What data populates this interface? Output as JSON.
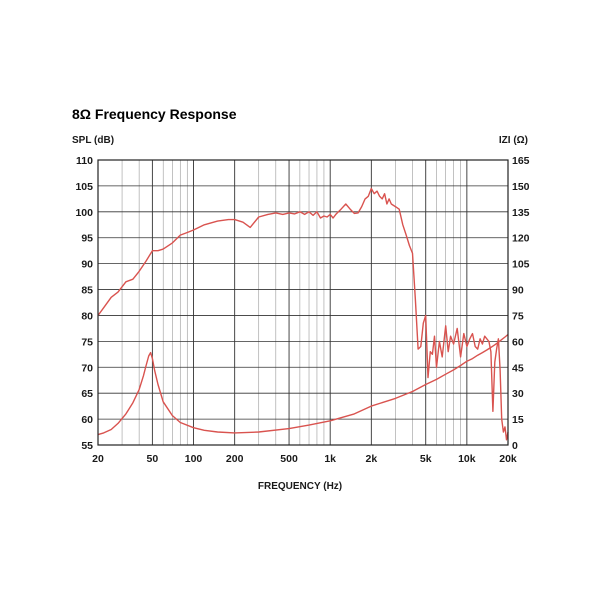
{
  "chart_data": {
    "type": "line",
    "title": "8Ω Frequency Response",
    "xlabel": "FREQUENCY (Hz)",
    "ylabel": "SPL (dB)",
    "y2label": "IZI (Ω)",
    "xscale": "log",
    "xlim": [
      20,
      20000
    ],
    "ylim": [
      55,
      110
    ],
    "y2lim": [
      0,
      165
    ],
    "grid": true,
    "colors": {
      "line": "#d9534f",
      "grid": "#999999",
      "major_grid": "#333333"
    },
    "xticks": [
      {
        "value": 20,
        "label": "20"
      },
      {
        "value": 50,
        "label": "50"
      },
      {
        "value": 100,
        "label": "100"
      },
      {
        "value": 200,
        "label": "200"
      },
      {
        "value": 500,
        "label": "500"
      },
      {
        "value": 1000,
        "label": "1k"
      },
      {
        "value": 2000,
        "label": "2k"
      },
      {
        "value": 5000,
        "label": "5k"
      },
      {
        "value": 10000,
        "label": "10k"
      },
      {
        "value": 20000,
        "label": "20k"
      }
    ],
    "yticks": [
      "55",
      "60",
      "65",
      "70",
      "75",
      "80",
      "85",
      "90",
      "95",
      "100",
      "105",
      "110"
    ],
    "y2ticks": [
      "0",
      "15",
      "30",
      "45",
      "60",
      "75",
      "90",
      "105",
      "120",
      "135",
      "150",
      "165"
    ],
    "series": [
      {
        "x": [
          20,
          22,
          25,
          28,
          32,
          36,
          40,
          45,
          50,
          55,
          60,
          70,
          80,
          90,
          100,
          120,
          150,
          180,
          200,
          230,
          260,
          300,
          350,
          400,
          450,
          500,
          550,
          600,
          650,
          700,
          750,
          800,
          850,
          900,
          950,
          1000,
          1050,
          1100,
          1200,
          1300,
          1400,
          1500,
          1600,
          1700,
          1800,
          1900,
          2000,
          2100,
          2200,
          2300,
          2400,
          2500,
          2600,
          2700,
          2800,
          3000,
          3200,
          3400,
          3600,
          3800,
          4000,
          4200,
          4400,
          4600,
          4800,
          5000,
          5200,
          5400,
          5600,
          5800,
          6000,
          6300,
          6600,
          7000,
          7300,
          7600,
          8000,
          8500,
          9000,
          9500,
          10000,
          10500,
          11000,
          11500,
          12000,
          12500,
          13000,
          13500,
          14000,
          14500,
          15000,
          15500,
          16000,
          16500,
          17000,
          17500,
          18000,
          18500,
          19000,
          19500,
          20000
        ],
        "y": [
          80,
          81.5,
          83.5,
          84.5,
          86.5,
          87,
          88.5,
          90.5,
          92.5,
          92.5,
          92.8,
          94,
          95.5,
          96,
          96.5,
          97.5,
          98.2,
          98.5,
          98.5,
          98,
          97,
          99,
          99.5,
          99.8,
          99.5,
          99.8,
          99.6,
          100,
          99.5,
          100,
          99.3,
          100,
          98.8,
          99.2,
          99,
          99.5,
          98.8,
          99.5,
          100.5,
          101.5,
          100.5,
          99.7,
          99.8,
          101,
          102.5,
          103,
          104.5,
          103.5,
          104,
          103,
          102.5,
          103.5,
          101.5,
          102.5,
          101.5,
          101,
          100.5,
          97.5,
          95.5,
          93.5,
          92,
          83,
          73.5,
          74,
          78.5,
          80,
          68,
          73,
          72.5,
          76,
          70,
          75,
          72,
          78,
          73,
          76,
          74.5,
          77.5,
          72,
          76.5,
          74,
          75.5,
          76.5,
          74,
          73.5,
          75.5,
          74.5,
          76,
          75.5,
          75,
          73,
          61.5,
          71,
          73.5,
          75.5,
          69.5,
          60,
          57.5,
          58.5,
          56,
          57.5
        ]
      },
      {
        "x": [
          20,
          22,
          25,
          28,
          32,
          36,
          40,
          43,
          45,
          47,
          48.5,
          50,
          52,
          55,
          60,
          70,
          80,
          100,
          120,
          150,
          200,
          300,
          500,
          700,
          1000,
          1500,
          2000,
          3000,
          4000,
          5000,
          6000,
          7000,
          8000,
          9000,
          10000,
          11000,
          12000,
          13000,
          14000,
          15000,
          16000,
          17000,
          18000,
          19000,
          20000
        ],
        "y": [
          6,
          7,
          9,
          12.5,
          18,
          24.5,
          32,
          40,
          46,
          51.5,
          53.5,
          50,
          43,
          35,
          25,
          17,
          13,
          10,
          8.5,
          7.5,
          7,
          7.5,
          9.5,
          11.5,
          14,
          18,
          22.5,
          27,
          31,
          35,
          38,
          41,
          43.5,
          46,
          48.5,
          50,
          52,
          53.5,
          55,
          56.5,
          58,
          59.5,
          61,
          62.5,
          64
        ]
      }
    ]
  }
}
